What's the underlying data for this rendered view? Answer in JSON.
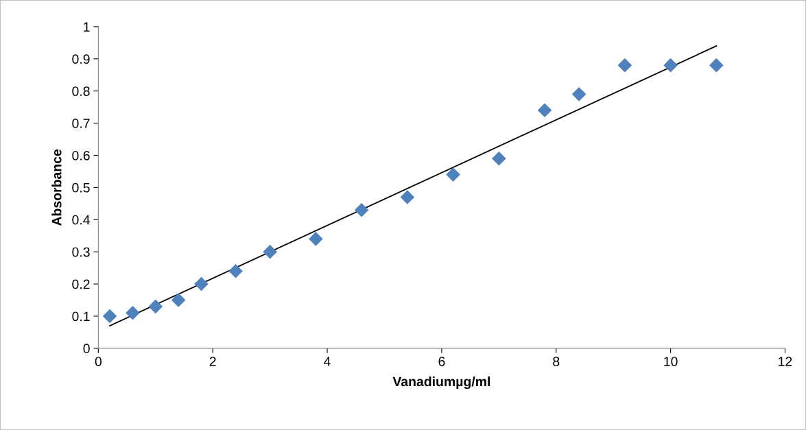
{
  "chart_data": {
    "type": "scatter",
    "xlabel": "Vanadiumµg/ml",
    "ylabel": "Absorbance",
    "xlim": [
      0,
      12
    ],
    "xticks": [
      0,
      2,
      4,
      6,
      8,
      10,
      12
    ],
    "ylim": [
      0,
      1
    ],
    "yticks": [
      0,
      0.1,
      0.2,
      0.3,
      0.4,
      0.5,
      0.6,
      0.7,
      0.8,
      0.9,
      1
    ],
    "grid": false,
    "legend": false,
    "series": [
      {
        "marker": "diamond",
        "color": "#4f81bd",
        "x": [
          0.2,
          0.6,
          1.0,
          1.4,
          1.8,
          2.4,
          3.0,
          3.8,
          4.6,
          5.4,
          6.2,
          7.0,
          7.8,
          8.4,
          9.2,
          10.0,
          10.8
        ],
        "values": [
          0.1,
          0.11,
          0.13,
          0.15,
          0.2,
          0.24,
          0.3,
          0.34,
          0.43,
          0.47,
          0.54,
          0.59,
          0.74,
          0.79,
          0.88,
          0.88,
          0.88
        ]
      },
      {
        "type": "line",
        "color": "#000000",
        "x": [
          0.2,
          10.8
        ],
        "values": [
          0.07,
          0.94
        ]
      }
    ]
  }
}
